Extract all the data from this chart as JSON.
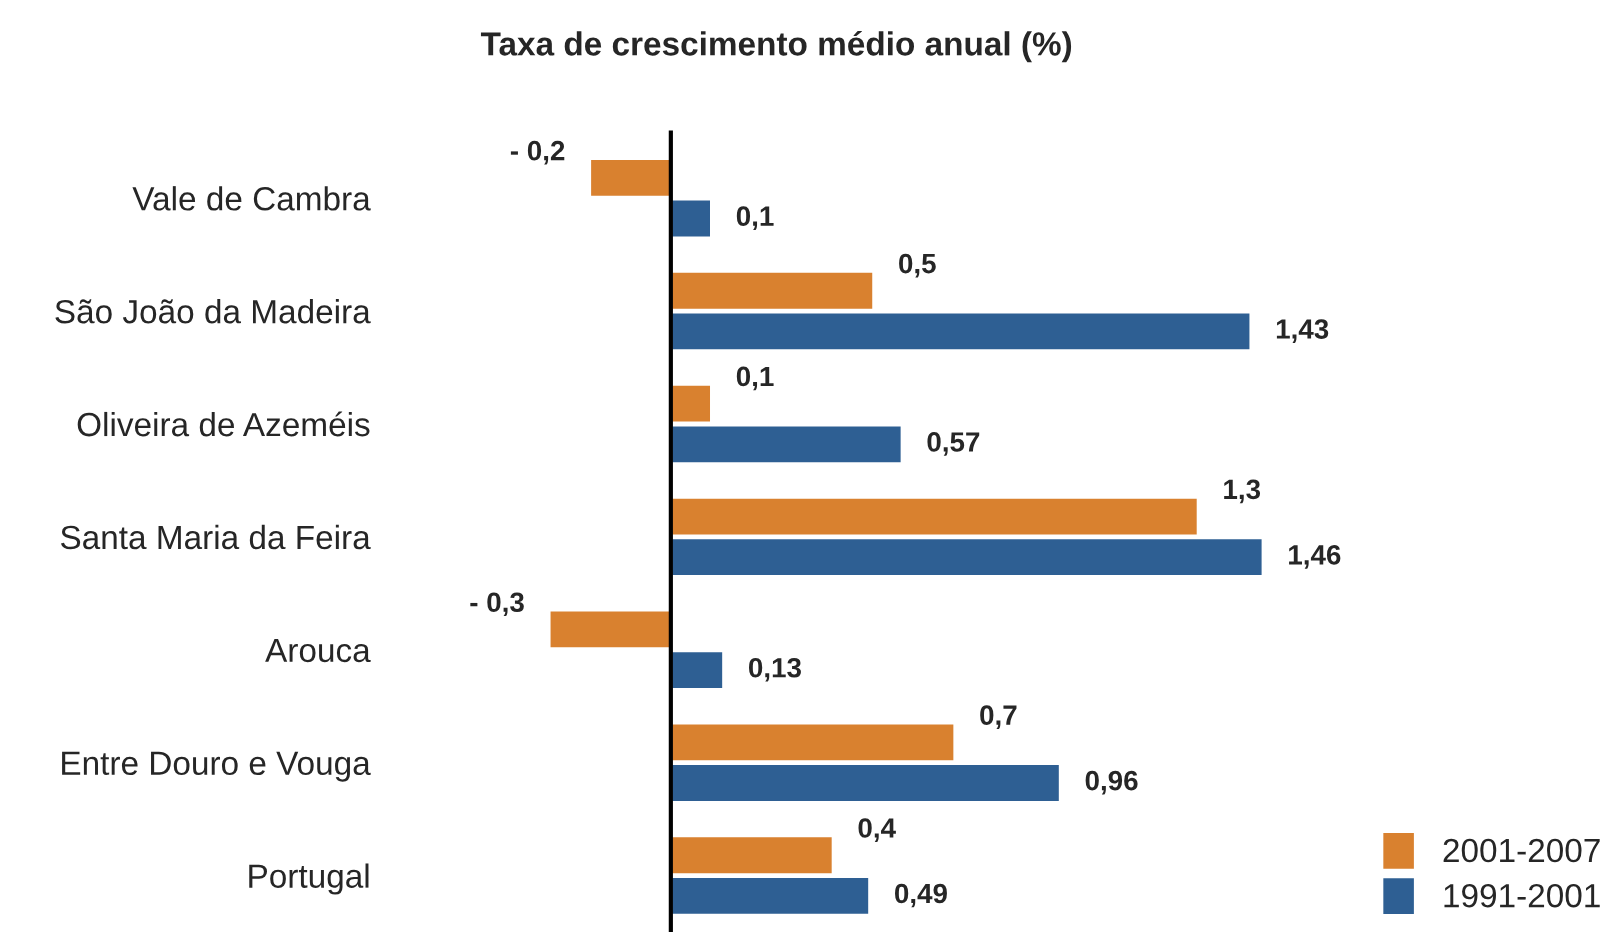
{
  "chart_data": {
    "type": "bar",
    "orientation": "horizontal",
    "title": "Taxa de crescimento médio anual (%)",
    "categories": [
      "Vale de Cambra",
      "São João da Madeira",
      "Oliveira de Azeméis",
      "Santa Maria da Feira",
      "Arouca",
      "Entre Douro e Vouga",
      "Portugal"
    ],
    "series": [
      {
        "name": "2001-2007",
        "color": "#d9812f",
        "values": [
          -0.2,
          0.5,
          0.1,
          1.3,
          -0.3,
          0.7,
          0.4
        ],
        "value_labels": [
          "- 0,2",
          "0,5",
          "0,1",
          "1,3",
          "- 0,3",
          "0,7",
          "0,4"
        ]
      },
      {
        "name": "1991-2001",
        "color": "#2e5f93",
        "values": [
          0.1,
          1.43,
          0.57,
          1.46,
          0.13,
          0.96,
          0.49
        ],
        "value_labels": [
          "0,1",
          "1,43",
          "0,57",
          "1,46",
          "0,13",
          "0,96",
          "0,49"
        ]
      }
    ],
    "tick_labels": "y",
    "ref_lines": [
      {
        "axis": "x",
        "value": 0,
        "color": "#000000"
      }
    ],
    "legend": "bottom right"
  }
}
